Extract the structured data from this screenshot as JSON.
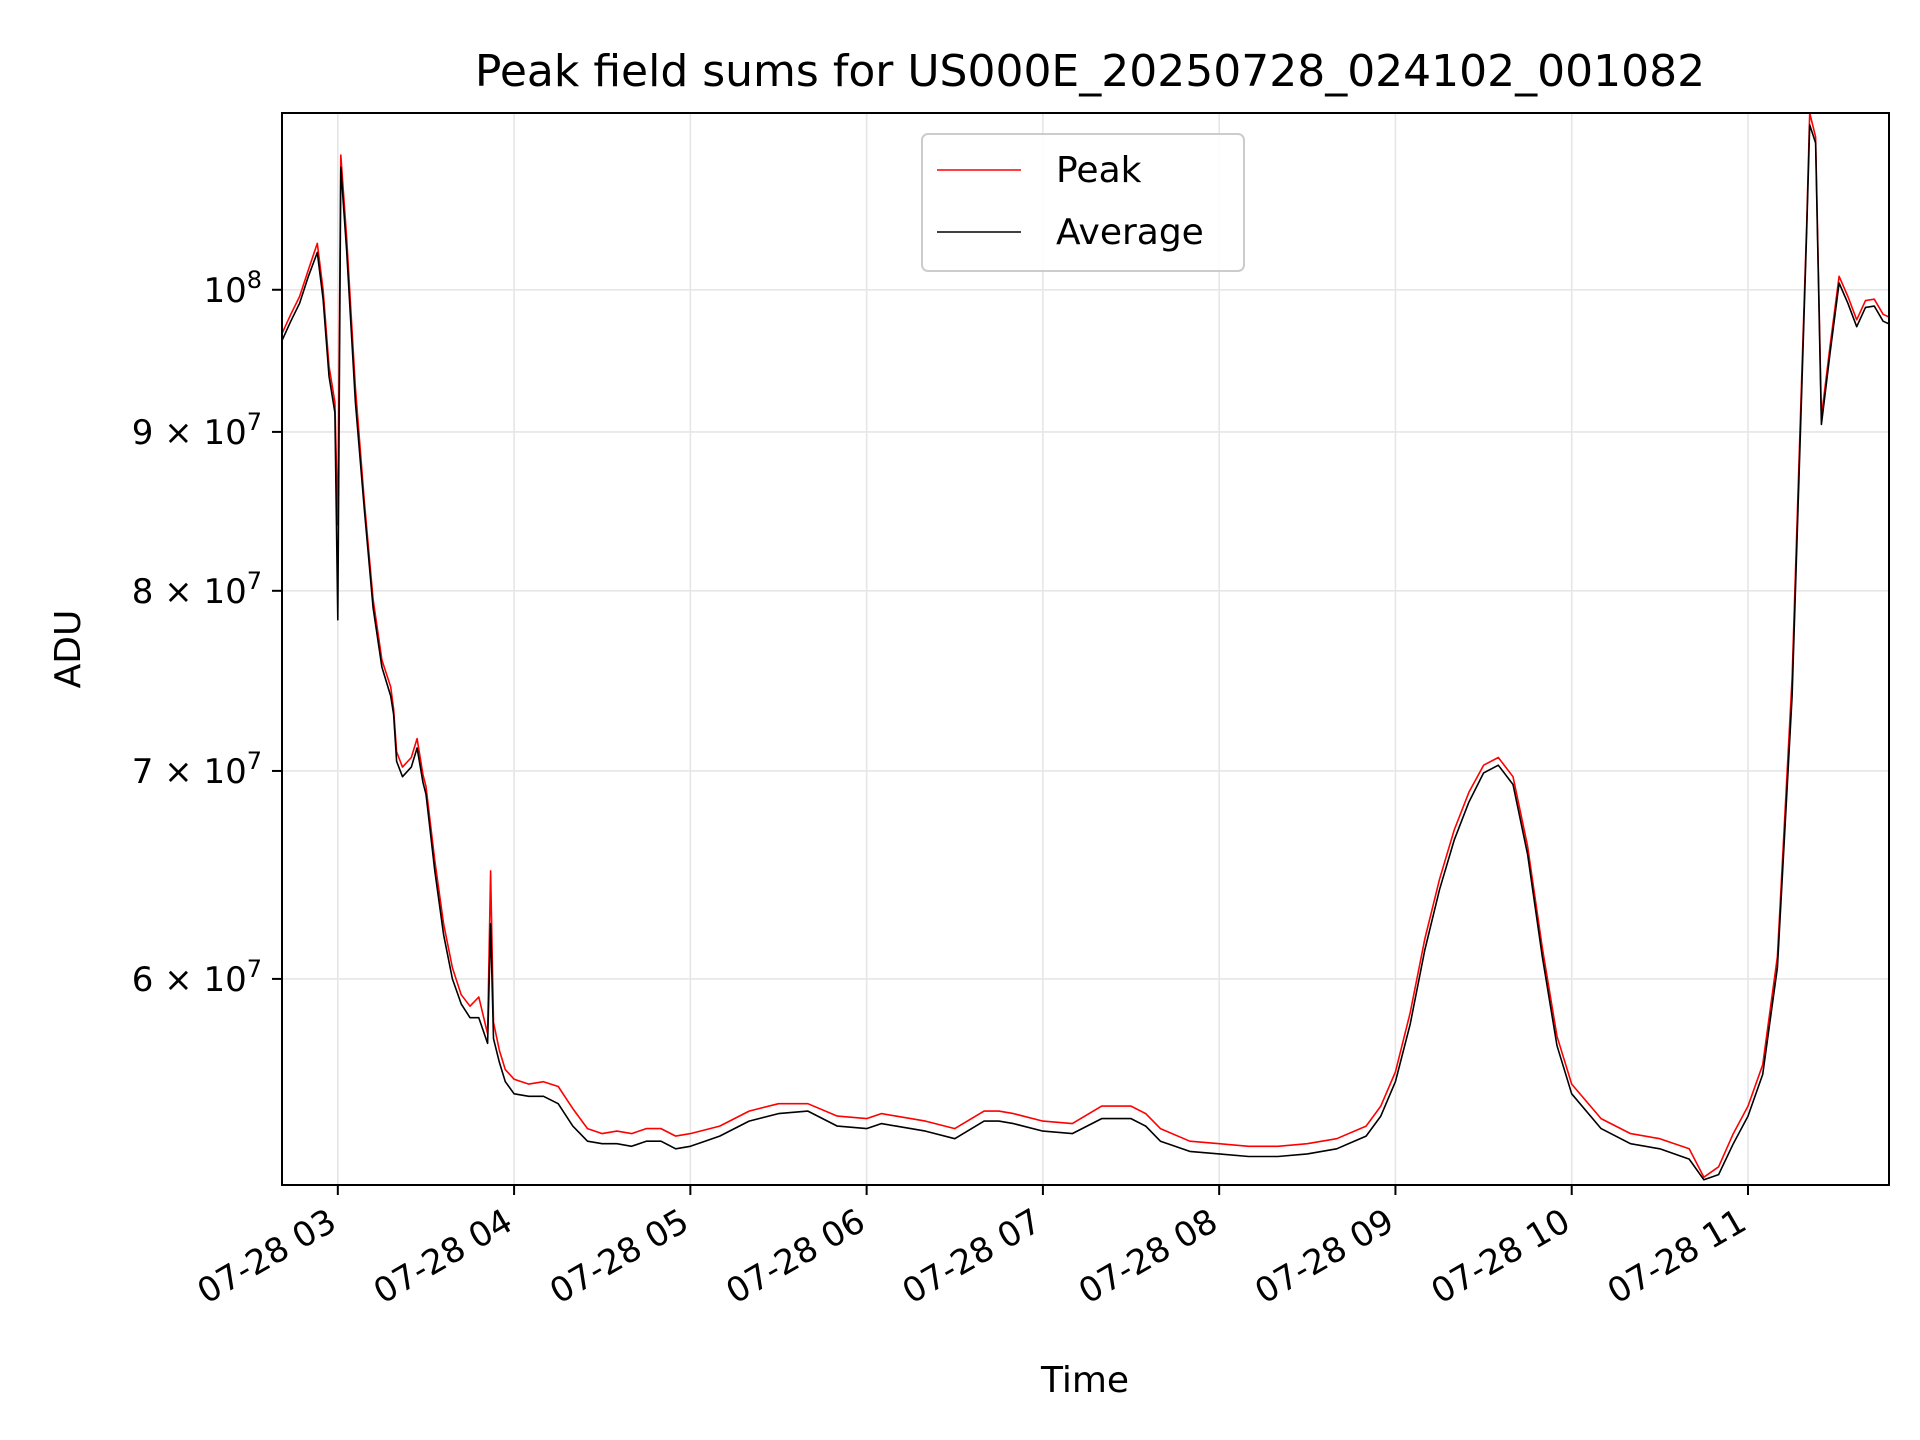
{
  "chart_data": {
    "type": "line",
    "title": "Peak field sums for US000E_20250728_024102_001082",
    "xlabel": "Time",
    "ylabel": "ADU",
    "y_scale": "log",
    "grid": true,
    "legend_position": "top-center",
    "xlim": [
      "2025-07-28 02:41",
      "2025-07-28 11:48"
    ],
    "ylim": [
      51500000,
      114000000
    ],
    "x_ticks": [
      "07-28 03",
      "07-28 04",
      "07-28 05",
      "07-28 06",
      "07-28 07",
      "07-28 08",
      "07-28 09",
      "07-28 10",
      "07-28 11"
    ],
    "x_tick_times": [
      "2025-07-28 03:00",
      "2025-07-28 04:00",
      "2025-07-28 05:00",
      "2025-07-28 06:00",
      "2025-07-28 07:00",
      "2025-07-28 08:00",
      "2025-07-28 09:00",
      "2025-07-28 10:00",
      "2025-07-28 11:00"
    ],
    "y_ticks": [
      {
        "value": 100000000,
        "mantissa": "",
        "exp": "8"
      },
      {
        "value": 90000000,
        "mantissa": "9",
        "exp": "7"
      },
      {
        "value": 80000000,
        "mantissa": "8",
        "exp": "7"
      },
      {
        "value": 70000000,
        "mantissa": "7",
        "exp": "7"
      },
      {
        "value": 60000000,
        "mantissa": "6",
        "exp": "7"
      }
    ],
    "series": [
      {
        "name": "Peak",
        "color": "#ff0000",
        "x": [
          "2025-07-28 02:41",
          "2025-07-28 02:44",
          "2025-07-28 02:47",
          "2025-07-28 02:50",
          "2025-07-28 02:53",
          "2025-07-28 02:55",
          "2025-07-28 02:57",
          "2025-07-28 02:59",
          "2025-07-28 03:00",
          "2025-07-28 03:01",
          "2025-07-28 03:03",
          "2025-07-28 03:06",
          "2025-07-28 03:09",
          "2025-07-28 03:12",
          "2025-07-28 03:15",
          "2025-07-28 03:18",
          "2025-07-28 03:19",
          "2025-07-28 03:20",
          "2025-07-28 03:22",
          "2025-07-28 03:25",
          "2025-07-28 03:27",
          "2025-07-28 03:29",
          "2025-07-28 03:30",
          "2025-07-28 03:33",
          "2025-07-28 03:36",
          "2025-07-28 03:39",
          "2025-07-28 03:42",
          "2025-07-28 03:45",
          "2025-07-28 03:48",
          "2025-07-28 03:51",
          "2025-07-28 03:52",
          "2025-07-28 03:53",
          "2025-07-28 03:55",
          "2025-07-28 03:57",
          "2025-07-28 04:00",
          "2025-07-28 04:05",
          "2025-07-28 04:10",
          "2025-07-28 04:15",
          "2025-07-28 04:20",
          "2025-07-28 04:25",
          "2025-07-28 04:30",
          "2025-07-28 04:35",
          "2025-07-28 04:40",
          "2025-07-28 04:45",
          "2025-07-28 04:50",
          "2025-07-28 04:55",
          "2025-07-28 05:00",
          "2025-07-28 05:10",
          "2025-07-28 05:20",
          "2025-07-28 05:30",
          "2025-07-28 05:40",
          "2025-07-28 05:50",
          "2025-07-28 06:00",
          "2025-07-28 06:05",
          "2025-07-28 06:10",
          "2025-07-28 06:20",
          "2025-07-28 06:30",
          "2025-07-28 06:40",
          "2025-07-28 06:45",
          "2025-07-28 06:50",
          "2025-07-28 07:00",
          "2025-07-28 07:10",
          "2025-07-28 07:20",
          "2025-07-28 07:30",
          "2025-07-28 07:35",
          "2025-07-28 07:40",
          "2025-07-28 07:50",
          "2025-07-28 08:00",
          "2025-07-28 08:10",
          "2025-07-28 08:20",
          "2025-07-28 08:30",
          "2025-07-28 08:40",
          "2025-07-28 08:50",
          "2025-07-28 08:55",
          "2025-07-28 09:00",
          "2025-07-28 09:05",
          "2025-07-28 09:10",
          "2025-07-28 09:15",
          "2025-07-28 09:20",
          "2025-07-28 09:25",
          "2025-07-28 09:30",
          "2025-07-28 09:35",
          "2025-07-28 09:40",
          "2025-07-28 09:45",
          "2025-07-28 09:50",
          "2025-07-28 09:55",
          "2025-07-28 10:00",
          "2025-07-28 10:10",
          "2025-07-28 10:20",
          "2025-07-28 10:30",
          "2025-07-28 10:40",
          "2025-07-28 10:45",
          "2025-07-28 10:50",
          "2025-07-28 10:55",
          "2025-07-28 11:00",
          "2025-07-28 11:05",
          "2025-07-28 11:10",
          "2025-07-28 11:15",
          "2025-07-28 11:18",
          "2025-07-28 11:20",
          "2025-07-28 11:21",
          "2025-07-28 11:23",
          "2025-07-28 11:25",
          "2025-07-28 11:28",
          "2025-07-28 11:31",
          "2025-07-28 11:34",
          "2025-07-28 11:37",
          "2025-07-28 11:40",
          "2025-07-28 11:43",
          "2025-07-28 11:46",
          "2025-07-28 11:48"
        ],
        "values": [
          96800000,
          98200000,
          99500000,
          101500000,
          103500000,
          100000000,
          94500000,
          92000000,
          84000000,
          110500000,
          104000000,
          93000000,
          85500000,
          79500000,
          76000000,
          74500000,
          73300000,
          71000000,
          70200000,
          70700000,
          71700000,
          69800000,
          69200000,
          65500000,
          62500000,
          60500000,
          59300000,
          58800000,
          59200000,
          57600000,
          65000000,
          58100000,
          56900000,
          56100000,
          55700000,
          55500000,
          55600000,
          55400000,
          54500000,
          53700000,
          53500000,
          53600000,
          53500000,
          53700000,
          53700000,
          53400000,
          53500000,
          53800000,
          54400000,
          54700000,
          54700000,
          54200000,
          54100000,
          54300000,
          54200000,
          54000000,
          53700000,
          54400000,
          54400000,
          54300000,
          54000000,
          53900000,
          54600000,
          54600000,
          54300000,
          53700000,
          53200000,
          53100000,
          53000000,
          53000000,
          53100000,
          53300000,
          53800000,
          54600000,
          56000000,
          58500000,
          61800000,
          64600000,
          67000000,
          68900000,
          70300000,
          70700000,
          69700000,
          66200000,
          61400000,
          57500000,
          55500000,
          54100000,
          53500000,
          53300000,
          52900000,
          51800000,
          52200000,
          53500000,
          54600000,
          56300000,
          61000000,
          75000000,
          92000000,
          105000000,
          114000000,
          112000000,
          91000000,
          96000000,
          101000000,
          99500000,
          97800000,
          99200000,
          99300000,
          98200000,
          98000000
        ]
      },
      {
        "name": "Average",
        "color": "#000000",
        "x": [
          "2025-07-28 02:41",
          "2025-07-28 02:44",
          "2025-07-28 02:47",
          "2025-07-28 02:50",
          "2025-07-28 02:53",
          "2025-07-28 02:55",
          "2025-07-28 02:57",
          "2025-07-28 02:59",
          "2025-07-28 03:00",
          "2025-07-28 03:01",
          "2025-07-28 03:03",
          "2025-07-28 03:06",
          "2025-07-28 03:09",
          "2025-07-28 03:12",
          "2025-07-28 03:15",
          "2025-07-28 03:18",
          "2025-07-28 03:19",
          "2025-07-28 03:20",
          "2025-07-28 03:22",
          "2025-07-28 03:25",
          "2025-07-28 03:27",
          "2025-07-28 03:29",
          "2025-07-28 03:30",
          "2025-07-28 03:33",
          "2025-07-28 03:36",
          "2025-07-28 03:39",
          "2025-07-28 03:42",
          "2025-07-28 03:45",
          "2025-07-28 03:48",
          "2025-07-28 03:51",
          "2025-07-28 03:52",
          "2025-07-28 03:53",
          "2025-07-28 03:55",
          "2025-07-28 03:57",
          "2025-07-28 04:00",
          "2025-07-28 04:05",
          "2025-07-28 04:10",
          "2025-07-28 04:15",
          "2025-07-28 04:20",
          "2025-07-28 04:25",
          "2025-07-28 04:30",
          "2025-07-28 04:35",
          "2025-07-28 04:40",
          "2025-07-28 04:45",
          "2025-07-28 04:50",
          "2025-07-28 04:55",
          "2025-07-28 05:00",
          "2025-07-28 05:10",
          "2025-07-28 05:20",
          "2025-07-28 05:30",
          "2025-07-28 05:40",
          "2025-07-28 05:50",
          "2025-07-28 06:00",
          "2025-07-28 06:05",
          "2025-07-28 06:10",
          "2025-07-28 06:20",
          "2025-07-28 06:30",
          "2025-07-28 06:40",
          "2025-07-28 06:45",
          "2025-07-28 06:50",
          "2025-07-28 07:00",
          "2025-07-28 07:10",
          "2025-07-28 07:20",
          "2025-07-28 07:30",
          "2025-07-28 07:35",
          "2025-07-28 07:40",
          "2025-07-28 07:50",
          "2025-07-28 08:00",
          "2025-07-28 08:10",
          "2025-07-28 08:20",
          "2025-07-28 08:30",
          "2025-07-28 08:40",
          "2025-07-28 08:50",
          "2025-07-28 08:55",
          "2025-07-28 09:00",
          "2025-07-28 09:05",
          "2025-07-28 09:10",
          "2025-07-28 09:15",
          "2025-07-28 09:20",
          "2025-07-28 09:25",
          "2025-07-28 09:30",
          "2025-07-28 09:35",
          "2025-07-28 09:40",
          "2025-07-28 09:45",
          "2025-07-28 09:50",
          "2025-07-28 09:55",
          "2025-07-28 10:00",
          "2025-07-28 10:10",
          "2025-07-28 10:20",
          "2025-07-28 10:30",
          "2025-07-28 10:40",
          "2025-07-28 10:45",
          "2025-07-28 10:50",
          "2025-07-28 10:55",
          "2025-07-28 11:00",
          "2025-07-28 11:05",
          "2025-07-28 11:10",
          "2025-07-28 11:15",
          "2025-07-28 11:18",
          "2025-07-28 11:20",
          "2025-07-28 11:21",
          "2025-07-28 11:23",
          "2025-07-28 11:25",
          "2025-07-28 11:28",
          "2025-07-28 11:31",
          "2025-07-28 11:34",
          "2025-07-28 11:37",
          "2025-07-28 11:40",
          "2025-07-28 11:43",
          "2025-07-28 11:46",
          "2025-07-28 11:48"
        ],
        "values": [
          96300000,
          97700000,
          99000000,
          101000000,
          102800000,
          99300000,
          93800000,
          91300000,
          78300000,
          109500000,
          103000000,
          92000000,
          85000000,
          79000000,
          75600000,
          74000000,
          73000000,
          70500000,
          69700000,
          70200000,
          71200000,
          69400000,
          68800000,
          65000000,
          62000000,
          60000000,
          58900000,
          58300000,
          58300000,
          57200000,
          62500000,
          57400000,
          56400000,
          55600000,
          55100000,
          55000000,
          55000000,
          54700000,
          53800000,
          53200000,
          53100000,
          53100000,
          53000000,
          53200000,
          53200000,
          52900000,
          53000000,
          53400000,
          54000000,
          54300000,
          54400000,
          53800000,
          53700000,
          53900000,
          53800000,
          53600000,
          53300000,
          54000000,
          54000000,
          53900000,
          53600000,
          53500000,
          54100000,
          54100000,
          53800000,
          53200000,
          52800000,
          52700000,
          52600000,
          52600000,
          52700000,
          52900000,
          53400000,
          54200000,
          55600000,
          58000000,
          61300000,
          64100000,
          66500000,
          68400000,
          69900000,
          70300000,
          69300000,
          65800000,
          61000000,
          57100000,
          55100000,
          53700000,
          53100000,
          52900000,
          52500000,
          51700000,
          51900000,
          53100000,
          54200000,
          55900000,
          60500000,
          74000000,
          91000000,
          104500000,
          113000000,
          111500000,
          90500000,
          95500000,
          100500000,
          99000000,
          97300000,
          98700000,
          98800000,
          97700000,
          97500000
        ]
      }
    ]
  }
}
